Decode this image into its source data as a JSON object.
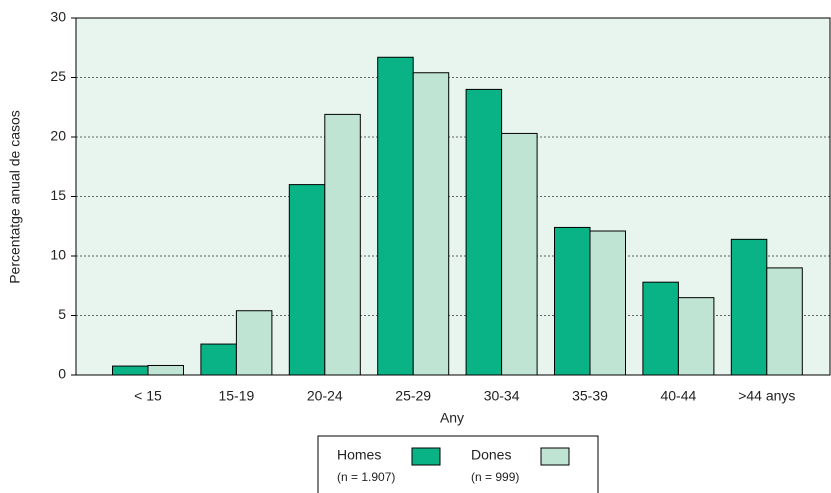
{
  "chart_data": {
    "type": "bar",
    "ylabel": "Percentatge anual de casos",
    "xlabel": "Any",
    "categories": [
      "< 15",
      "15-19",
      "20-24",
      "25-29",
      "30-34",
      "35-39",
      "40-44",
      ">44 anys"
    ],
    "series": [
      {
        "name": "Homes",
        "sample": "(n = 1.907)",
        "color": "#0ab386",
        "values": [
          0.75,
          2.6,
          16.0,
          26.7,
          24.0,
          12.4,
          7.8,
          11.4
        ]
      },
      {
        "name": "Dones",
        "sample": "(n = 999)",
        "color": "#bfe4d4",
        "values": [
          0.8,
          5.4,
          21.9,
          25.4,
          20.3,
          12.1,
          6.5,
          9.0
        ]
      }
    ],
    "ylim": [
      0,
      30
    ],
    "yticks": [
      0,
      5,
      10,
      15,
      20,
      25,
      30
    ],
    "grid": true,
    "legend": "bottom"
  }
}
